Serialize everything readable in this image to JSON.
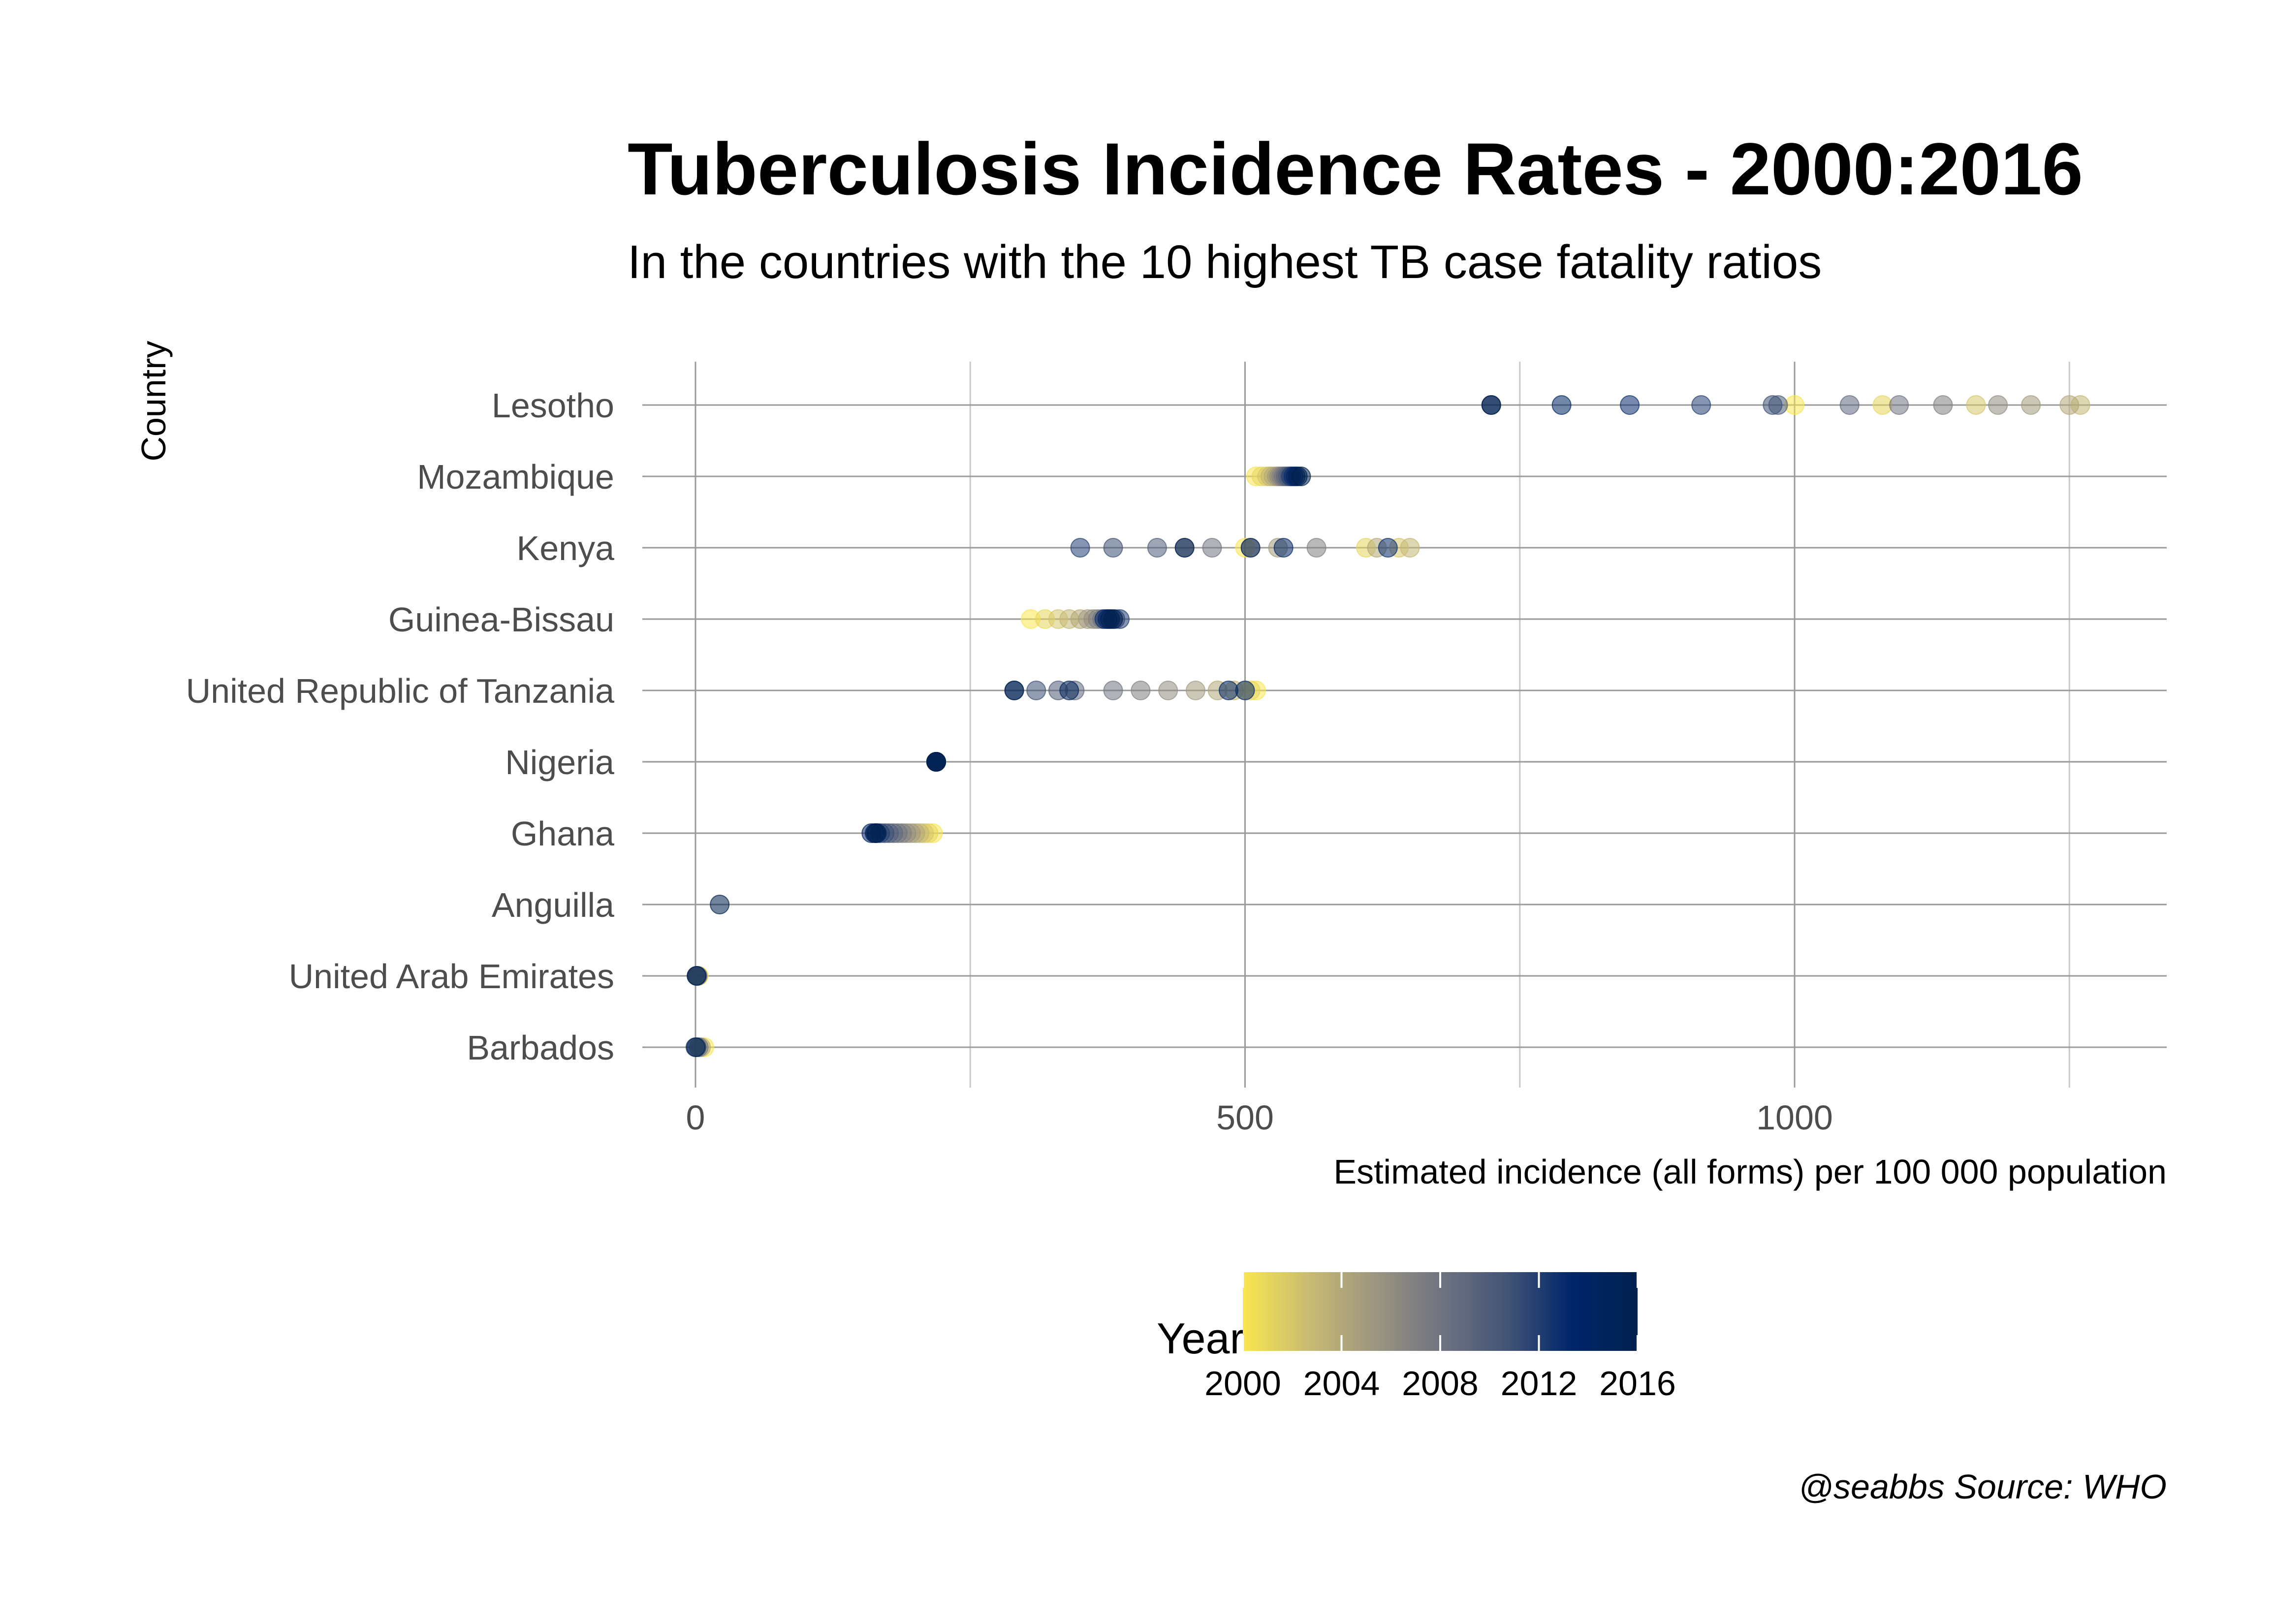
{
  "chart_data": {
    "type": "scatter",
    "title": "Tuberculosis Incidence Rates - 2000:2016",
    "subtitle": "In the countries with the 10 highest TB case fatality ratios",
    "xlabel": "Estimated incidence (all forms) per 100 000 population",
    "ylabel": "Country",
    "caption": "@seabbs Source: WHO",
    "xlim": [
      -50,
      1350
    ],
    "x_ticks": [
      0,
      500,
      1000
    ],
    "x_tick_labels": [
      "0",
      "500",
      "1000"
    ],
    "grid": true,
    "legend": {
      "title": "Year",
      "position": "bottom",
      "type": "colorbar",
      "range": [
        2000,
        2016
      ],
      "ticks": [
        2000,
        2004,
        2008,
        2012,
        2016
      ],
      "tick_labels": [
        "2000",
        "2004",
        "2008",
        "2012",
        "2016"
      ],
      "colors": [
        "#f9e64f",
        "#c9bb72",
        "#9c9580",
        "#6f7480",
        "#445577",
        "#00266a",
        "#00204d"
      ]
    },
    "categories": [
      "Lesotho",
      "Mozambique",
      "Kenya",
      "Guinea-Bissau",
      "United Republic of Tanzania",
      "Nigeria",
      "Ghana",
      "Anguilla",
      "United Arab Emirates",
      "Barbados"
    ],
    "series": [
      {
        "country": "Lesotho",
        "years": [
          2000,
          2001,
          2002,
          2003,
          2004,
          2005,
          2006,
          2007,
          2008,
          2009,
          2010,
          2011,
          2012,
          2013,
          2014,
          2015,
          2016
        ],
        "values": [
          1000,
          1080,
          1165,
          1260,
          1250,
          1215,
          1185,
          1135,
          1095,
          1050,
          985,
          980,
          915,
          850,
          788,
          724,
          724
        ]
      },
      {
        "country": "Mozambique",
        "years": [
          2000,
          2001,
          2002,
          2003,
          2004,
          2005,
          2006,
          2007,
          2008,
          2009,
          2010,
          2011,
          2012,
          2013,
          2014,
          2015,
          2016
        ],
        "values": [
          510,
          515,
          520,
          523,
          526,
          529,
          531,
          533,
          535,
          537,
          539,
          541,
          542,
          544,
          546,
          548,
          551
        ]
      },
      {
        "country": "Kenya",
        "years": [
          2000,
          2001,
          2002,
          2003,
          2004,
          2005,
          2006,
          2007,
          2008,
          2009,
          2010,
          2011,
          2012,
          2013,
          2014,
          2015,
          2016
        ],
        "values": [
          500,
          610,
          640,
          650,
          620,
          530,
          505,
          565,
          470,
          445,
          420,
          380,
          350,
          630,
          535,
          505,
          445
        ]
      },
      {
        "country": "Guinea-Bissau",
        "years": [
          2000,
          2001,
          2002,
          2003,
          2004,
          2005,
          2006,
          2007,
          2008,
          2009,
          2010,
          2011,
          2012,
          2013,
          2014,
          2015,
          2016
        ],
        "values": [
          305,
          318,
          330,
          340,
          350,
          357,
          362,
          366,
          370,
          374,
          378,
          382,
          386,
          372,
          375,
          377,
          380
        ]
      },
      {
        "country": "United Republic of Tanzania",
        "years": [
          2000,
          2001,
          2002,
          2003,
          2004,
          2005,
          2006,
          2007,
          2008,
          2009,
          2010,
          2011,
          2012,
          2013,
          2014,
          2015,
          2016
        ],
        "values": [
          510,
          505,
          500,
          490,
          475,
          455,
          430,
          405,
          380,
          345,
          330,
          310,
          290,
          500,
          485,
          340,
          290
        ]
      },
      {
        "country": "Nigeria",
        "years": [
          2000,
          2001,
          2002,
          2003,
          2004,
          2005,
          2006,
          2007,
          2008,
          2009,
          2010,
          2011,
          2012,
          2013,
          2014,
          2015,
          2016
        ],
        "values": [
          219,
          219,
          219,
          219,
          219,
          219,
          219,
          219,
          219,
          219,
          219,
          219,
          219,
          219,
          219,
          219,
          219
        ]
      },
      {
        "country": "Ghana",
        "years": [
          2000,
          2001,
          2002,
          2003,
          2004,
          2005,
          2006,
          2007,
          2008,
          2009,
          2010,
          2011,
          2012,
          2013,
          2014,
          2015,
          2016
        ],
        "values": [
          216,
          212,
          208,
          204,
          200,
          196,
          192,
          188,
          184,
          180,
          176,
          172,
          168,
          164,
          160,
          163,
          165
        ]
      },
      {
        "country": "Anguilla",
        "years": [
          2016
        ],
        "values": [
          22
        ]
      },
      {
        "country": "United Arab Emirates",
        "years": [
          2000,
          2004,
          2008,
          2012,
          2016
        ],
        "values": [
          3,
          2,
          2,
          1,
          1
        ]
      },
      {
        "country": "Barbados",
        "years": [
          2000,
          2004,
          2008,
          2012,
          2016
        ],
        "values": [
          8,
          5,
          3,
          1,
          0
        ]
      }
    ]
  }
}
